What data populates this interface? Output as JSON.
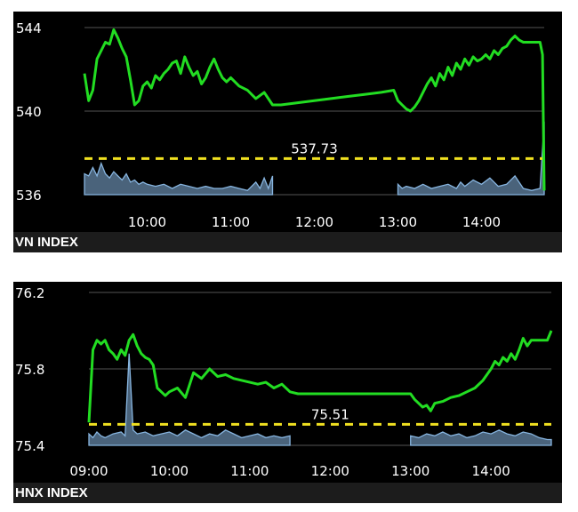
{
  "chart_data": [
    {
      "type": "line",
      "title": "VN INDEX",
      "xlim": [
        9.25,
        14.75
      ],
      "ylim": [
        536,
        544
      ],
      "grid": true,
      "yticks": [
        {
          "value": 544,
          "label": "544"
        },
        {
          "value": 540,
          "label": "540"
        },
        {
          "value": 536,
          "label": "536"
        }
      ],
      "xticks": [
        {
          "value": 10,
          "label": "10:00"
        },
        {
          "value": 11,
          "label": "11:00"
        },
        {
          "value": 12,
          "label": "12:00"
        },
        {
          "value": 13,
          "label": "13:00"
        },
        {
          "value": 14,
          "label": "14:00"
        }
      ],
      "reference": {
        "value": 537.73,
        "label": "537.73",
        "color": "#f0e020"
      },
      "colors": {
        "price": "#22dd22",
        "volume": "#87b5e0",
        "grid": "#555555"
      },
      "series": [
        {
          "kind": "price",
          "x": [
            9.25,
            9.3,
            9.35,
            9.4,
            9.45,
            9.5,
            9.55,
            9.6,
            9.65,
            9.7,
            9.75,
            9.8,
            9.85,
            9.9,
            9.95,
            10.0,
            10.05,
            10.1,
            10.15,
            10.2,
            10.25,
            10.3,
            10.35,
            10.4,
            10.45,
            10.5,
            10.55,
            10.6,
            10.65,
            10.7,
            10.75,
            10.8,
            10.85,
            10.9,
            10.95,
            11.0,
            11.1,
            11.2,
            11.3,
            11.4,
            11.5,
            11.6,
            11.8,
            12.0,
            12.2,
            12.4,
            12.6,
            12.8,
            12.95,
            13.0,
            13.05,
            13.1,
            13.15,
            13.2,
            13.25,
            13.3,
            13.35,
            13.4,
            13.45,
            13.5,
            13.55,
            13.6,
            13.65,
            13.7,
            13.75,
            13.8,
            13.85,
            13.9,
            13.95,
            14.0,
            14.05,
            14.1,
            14.15,
            14.2,
            14.25,
            14.3,
            14.35,
            14.4,
            14.45,
            14.5,
            14.55,
            14.6,
            14.65,
            14.7,
            14.73,
            14.75
          ],
          "y": [
            541.8,
            540.5,
            541.0,
            542.5,
            542.9,
            543.3,
            543.2,
            543.9,
            543.5,
            543.0,
            542.6,
            541.5,
            540.3,
            540.5,
            541.2,
            541.4,
            541.1,
            541.7,
            541.5,
            541.8,
            542.0,
            542.3,
            542.4,
            541.8,
            542.6,
            542.1,
            541.7,
            541.9,
            541.3,
            541.6,
            542.1,
            542.5,
            542.0,
            541.6,
            541.4,
            541.6,
            541.2,
            541.0,
            540.6,
            540.9,
            540.3,
            540.3,
            540.4,
            540.5,
            540.6,
            540.7,
            540.8,
            540.9,
            541.0,
            540.5,
            540.3,
            540.1,
            540.0,
            540.2,
            540.5,
            540.9,
            541.3,
            541.6,
            541.2,
            541.8,
            541.5,
            542.1,
            541.7,
            542.3,
            542.0,
            542.5,
            542.2,
            542.6,
            542.4,
            542.5,
            542.7,
            542.5,
            542.9,
            542.7,
            543.0,
            543.1,
            543.4,
            543.6,
            543.4,
            543.3,
            543.3,
            543.3,
            543.3,
            543.3,
            542.7,
            536.2
          ]
        },
        {
          "kind": "volume",
          "x": [
            9.25,
            9.3,
            9.35,
            9.4,
            9.45,
            9.5,
            9.55,
            9.6,
            9.65,
            9.7,
            9.75,
            9.8,
            9.85,
            9.9,
            9.95,
            10.0,
            10.1,
            10.2,
            10.3,
            10.4,
            10.5,
            10.6,
            10.7,
            10.8,
            10.9,
            11.0,
            11.1,
            11.2,
            11.3,
            11.35,
            11.4,
            11.45,
            11.5,
            13.0,
            13.05,
            13.1,
            13.2,
            13.3,
            13.4,
            13.5,
            13.6,
            13.7,
            13.75,
            13.8,
            13.9,
            14.0,
            14.1,
            14.2,
            14.3,
            14.4,
            14.5,
            14.6,
            14.7,
            14.75
          ],
          "y": [
            537.0,
            536.9,
            537.3,
            536.9,
            537.5,
            537.0,
            536.8,
            537.1,
            536.9,
            536.7,
            537.0,
            536.6,
            536.7,
            536.5,
            536.6,
            536.5,
            536.4,
            536.5,
            536.3,
            536.5,
            536.4,
            536.3,
            536.4,
            536.3,
            536.3,
            536.4,
            536.3,
            536.2,
            536.6,
            536.3,
            536.8,
            536.3,
            536.9,
            536.5,
            536.3,
            536.4,
            536.3,
            536.5,
            536.3,
            536.4,
            536.5,
            536.3,
            536.6,
            536.4,
            536.7,
            536.5,
            536.8,
            536.4,
            536.5,
            536.9,
            536.3,
            536.2,
            536.3,
            539.5
          ]
        }
      ]
    },
    {
      "type": "line",
      "title": "HNX INDEX",
      "xlim": [
        9.0,
        14.75
      ],
      "ylim": [
        75.4,
        76.2
      ],
      "grid": true,
      "yticks": [
        {
          "value": 76.2,
          "label": "76.2"
        },
        {
          "value": 75.8,
          "label": "75.8"
        },
        {
          "value": 75.4,
          "label": "75.4"
        }
      ],
      "xticks": [
        {
          "value": 9,
          "label": "09:00"
        },
        {
          "value": 10,
          "label": "10:00"
        },
        {
          "value": 11,
          "label": "11:00"
        },
        {
          "value": 12,
          "label": "12:00"
        },
        {
          "value": 13,
          "label": "13:00"
        },
        {
          "value": 14,
          "label": "14:00"
        }
      ],
      "reference": {
        "value": 75.51,
        "label": "75.51",
        "color": "#f0e020"
      },
      "colors": {
        "price": "#22dd22",
        "volume": "#87b5e0",
        "grid": "#555555"
      },
      "series": [
        {
          "kind": "price",
          "x": [
            9.0,
            9.05,
            9.1,
            9.15,
            9.2,
            9.25,
            9.3,
            9.35,
            9.4,
            9.45,
            9.5,
            9.55,
            9.6,
            9.65,
            9.7,
            9.75,
            9.8,
            9.85,
            9.9,
            9.95,
            10.0,
            10.1,
            10.2,
            10.3,
            10.4,
            10.5,
            10.6,
            10.7,
            10.8,
            10.9,
            11.0,
            11.1,
            11.2,
            11.3,
            11.4,
            11.5,
            11.6,
            12.0,
            12.5,
            13.0,
            13.05,
            13.1,
            13.15,
            13.2,
            13.25,
            13.3,
            13.4,
            13.5,
            13.6,
            13.7,
            13.8,
            13.9,
            14.0,
            14.05,
            14.1,
            14.15,
            14.2,
            14.25,
            14.3,
            14.35,
            14.4,
            14.45,
            14.5,
            14.6,
            14.7,
            14.75
          ],
          "y": [
            75.52,
            75.9,
            75.95,
            75.93,
            75.95,
            75.9,
            75.88,
            75.85,
            75.9,
            75.87,
            75.95,
            75.98,
            75.92,
            75.88,
            75.86,
            75.85,
            75.82,
            75.7,
            75.68,
            75.66,
            75.68,
            75.7,
            75.65,
            75.78,
            75.75,
            75.8,
            75.76,
            75.77,
            75.75,
            75.74,
            75.73,
            75.72,
            75.73,
            75.7,
            75.72,
            75.68,
            75.67,
            75.67,
            75.67,
            75.67,
            75.64,
            75.62,
            75.6,
            75.61,
            75.58,
            75.62,
            75.63,
            75.65,
            75.66,
            75.68,
            75.7,
            75.74,
            75.8,
            75.84,
            75.82,
            75.86,
            75.84,
            75.88,
            75.85,
            75.9,
            75.96,
            75.92,
            75.95,
            75.95,
            75.95,
            76.0
          ]
        },
        {
          "kind": "volume",
          "x": [
            9.0,
            9.05,
            9.1,
            9.15,
            9.2,
            9.3,
            9.4,
            9.45,
            9.5,
            9.55,
            9.6,
            9.7,
            9.8,
            9.9,
            10.0,
            10.1,
            10.2,
            10.3,
            10.4,
            10.5,
            10.6,
            10.7,
            10.8,
            10.9,
            11.0,
            11.1,
            11.2,
            11.3,
            11.4,
            11.5,
            13.0,
            13.1,
            13.2,
            13.3,
            13.4,
            13.5,
            13.6,
            13.7,
            13.8,
            13.9,
            14.0,
            14.1,
            14.2,
            14.3,
            14.4,
            14.5,
            14.6,
            14.7,
            14.75
          ],
          "y": [
            75.46,
            75.44,
            75.47,
            75.45,
            75.44,
            75.46,
            75.47,
            75.45,
            75.88,
            75.48,
            75.46,
            75.47,
            75.45,
            75.46,
            75.47,
            75.45,
            75.48,
            75.46,
            75.44,
            75.46,
            75.45,
            75.48,
            75.46,
            75.44,
            75.45,
            75.46,
            75.44,
            75.45,
            75.44,
            75.45,
            75.45,
            75.44,
            75.46,
            75.45,
            75.47,
            75.45,
            75.46,
            75.44,
            75.45,
            75.47,
            75.46,
            75.48,
            75.46,
            75.45,
            75.47,
            75.46,
            75.44,
            75.43,
            75.43
          ]
        }
      ]
    }
  ]
}
